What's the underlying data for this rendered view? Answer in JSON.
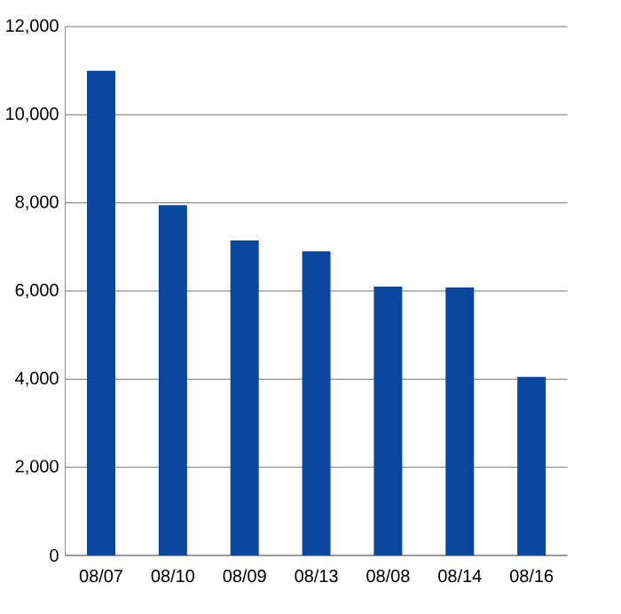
{
  "chart_data": {
    "type": "bar",
    "categories": [
      "08/07",
      "08/10",
      "08/09",
      "08/13",
      "08/08",
      "08/14",
      "08/16"
    ],
    "values": [
      11000,
      7950,
      7150,
      6900,
      6100,
      6080,
      4050
    ],
    "color": "#0b46a0",
    "ylim": [
      0,
      12000
    ],
    "yticks": [
      {
        "value": 0,
        "label": "0"
      },
      {
        "value": 2000,
        "label": "2,000"
      },
      {
        "value": 4000,
        "label": "4,000"
      },
      {
        "value": 6000,
        "label": "6,000"
      },
      {
        "value": 8000,
        "label": "8,000"
      },
      {
        "value": 10000,
        "label": "10,000"
      },
      {
        "value": 12000,
        "label": "12,000"
      }
    ],
    "grid": "y"
  }
}
